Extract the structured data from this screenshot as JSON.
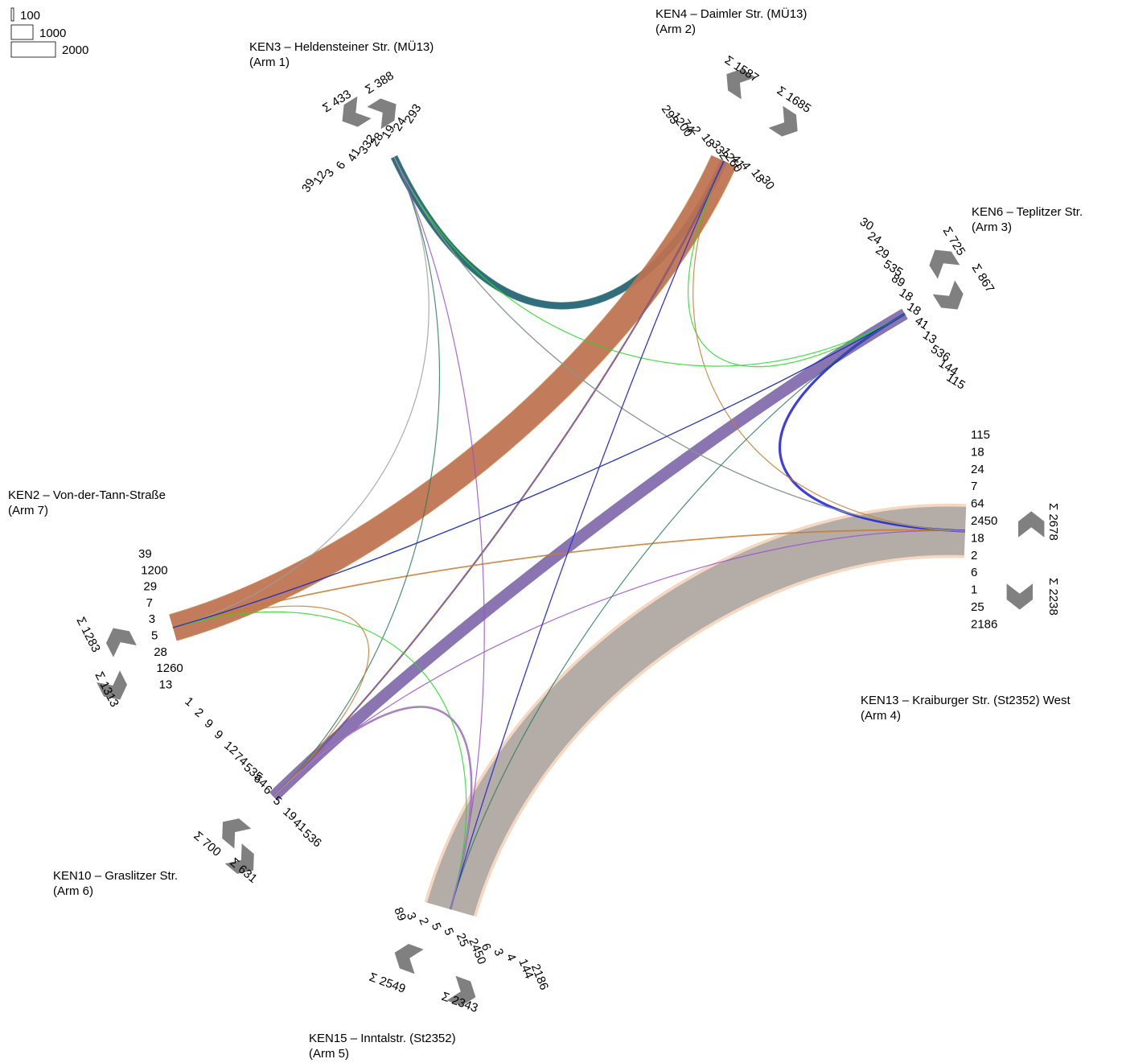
{
  "legend": {
    "scale": [
      "100",
      "1000",
      "2000"
    ]
  },
  "colors": {
    "arm1_flow": "#2e7d5b",
    "arm2_flow": "#9b4fd0",
    "arm2_flow_b": "#c77b30",
    "arm3_flow": "#22dd22",
    "arm4_flow": "#f5d0b8",
    "arm4_flow_b": "#9e9e9e",
    "arm5_flow": "#f2c9ad",
    "arm6_flow": "#1b1bdd",
    "sum_arrow": "#808080"
  },
  "arms": [
    {
      "id": "arm1",
      "title": "KEN3 – Heldensteiner Str. (MÜ13)",
      "subtitle": "(Arm 1)",
      "sum_in": "Σ 433",
      "sum_out": "Σ 388",
      "numbers": [
        "39",
        "12",
        "3",
        "6",
        "41",
        "332",
        "28",
        "19",
        "24",
        "293"
      ]
    },
    {
      "id": "arm2",
      "title": "KEN4 – Daimler Str. (MÜ13)",
      "subtitle": "(Arm 2)",
      "sum_in": "Σ 1587",
      "sum_out": "Σ 1685",
      "numbers": [
        "293",
        "1200",
        "74",
        "2",
        "18",
        "332",
        "1260",
        "41",
        "4",
        "18",
        "30"
      ]
    },
    {
      "id": "arm3",
      "title": "KEN6 – Teplitzer Str.",
      "subtitle": "(Arm 3)",
      "sum_in": "Σ 725",
      "sum_out": "Σ 867",
      "numbers": [
        "30",
        "24",
        "29",
        "535",
        "89",
        "18",
        "18",
        "41",
        "13",
        "536",
        "144",
        "115"
      ]
    },
    {
      "id": "arm4",
      "title": "KEN13 – Kraiburger Str. (St2352) West",
      "subtitle": "(Arm 4)",
      "sum_in": "Σ 2678",
      "sum_out": "Σ 2238",
      "numbers": [
        "115",
        "18",
        "24",
        "7",
        "64",
        "2450",
        "18",
        "2",
        "6",
        "1",
        "25",
        "2186"
      ]
    },
    {
      "id": "arm5",
      "title": "KEN15 – Inntalstr. (St2352)",
      "subtitle": "(Arm 5)",
      "sum_in": "Σ 2549",
      "sum_out": "Σ 2343",
      "numbers": [
        "89",
        "3",
        "2",
        "5",
        "5",
        "25",
        "2450",
        "6",
        "3",
        "4",
        "144",
        "2186"
      ]
    },
    {
      "id": "arm6",
      "title": "KEN10 – Graslitzer Str.",
      "subtitle": "(Arm 6)",
      "sum_in": "Σ 700",
      "sum_out": "Σ 631",
      "numbers": [
        "1",
        "2",
        "9",
        "9",
        "12",
        "74",
        "535",
        "64",
        "6",
        "5",
        "19",
        "41",
        "536"
      ]
    },
    {
      "id": "arm7",
      "title": "KEN2 – Von-der-Tann-Straße",
      "subtitle": "(Arm 7)",
      "sum_in": "Σ 1283",
      "sum_out": "Σ 1313",
      "numbers": [
        "39",
        "1200",
        "29",
        "7",
        "3",
        "5",
        "28",
        "1260",
        "13"
      ]
    }
  ],
  "flows": [
    {
      "from": "arm1",
      "to": "arm2",
      "value": 293,
      "color": "#1b1bdd"
    },
    {
      "from": "arm1",
      "to": "arm2",
      "value": 332,
      "color": "#2e7d5b"
    },
    {
      "from": "arm2",
      "to": "arm7",
      "value": 1200,
      "color": "#9b4fd0"
    },
    {
      "from": "arm2",
      "to": "arm7",
      "value": 1260,
      "color": "#c77b30"
    },
    {
      "from": "arm4",
      "to": "arm5",
      "value": 2450,
      "color": "#f2c9ad"
    },
    {
      "from": "arm4",
      "to": "arm5",
      "value": 2186,
      "color": "#9e9e9e"
    },
    {
      "from": "arm3",
      "to": "arm6",
      "value": 535,
      "color": "#22dd22"
    },
    {
      "from": "arm3",
      "to": "arm6",
      "value": 536,
      "color": "#9b4fd0"
    },
    {
      "from": "arm3",
      "to": "arm4",
      "value": 115,
      "color": "#1b1bdd"
    },
    {
      "from": "arm2",
      "to": "arm6",
      "value": 74,
      "color": "#1b1bdd"
    },
    {
      "from": "arm1",
      "to": "arm7",
      "value": 39,
      "color": "#9e9e9e"
    },
    {
      "from": "arm5",
      "to": "arm6",
      "value": 89,
      "color": "#9b4fd0"
    },
    {
      "from": "arm4",
      "to": "arm7",
      "value": 64,
      "color": "#c77b30"
    },
    {
      "from": "arm2",
      "to": "arm3",
      "value": 30,
      "color": "#22dd22"
    },
    {
      "from": "arm2",
      "to": "arm4",
      "value": 41,
      "color": "#c77b30"
    },
    {
      "from": "arm1",
      "to": "arm6",
      "value": 41,
      "color": "#2e7d5b"
    },
    {
      "from": "arm1",
      "to": "arm3",
      "value": 24,
      "color": "#22dd22"
    },
    {
      "from": "arm1",
      "to": "arm4",
      "value": 28,
      "color": "#2e7d5b"
    },
    {
      "from": "arm6",
      "to": "arm4",
      "value": 25,
      "color": "#9b4fd0"
    },
    {
      "from": "arm7",
      "to": "arm3",
      "value": 28,
      "color": "#2e7d5b"
    },
    {
      "from": "arm7",
      "to": "arm6",
      "value": 13,
      "color": "#c77b30"
    },
    {
      "from": "arm7",
      "to": "arm5",
      "value": 7,
      "color": "#22dd22"
    },
    {
      "from": "arm5",
      "to": "arm1",
      "value": 19,
      "color": "#9b4fd0"
    },
    {
      "from": "arm5",
      "to": "arm2",
      "value": 18,
      "color": "#9e9e9e"
    },
    {
      "from": "arm6",
      "to": "arm2",
      "value": 18,
      "color": "#c77b30"
    },
    {
      "from": "arm4",
      "to": "arm1",
      "value": 12,
      "color": "#9e9e9e"
    },
    {
      "from": "arm3",
      "to": "arm7",
      "value": 18,
      "color": "#1b1bdd"
    },
    {
      "from": "arm5",
      "to": "arm3",
      "value": 24,
      "color": "#2e7d5b"
    },
    {
      "from": "arm2",
      "to": "arm5",
      "value": 18,
      "color": "#1b1bdd"
    },
    {
      "from": "arm6",
      "to": "arm5",
      "value": 9,
      "color": "#9e9e9e"
    }
  ]
}
